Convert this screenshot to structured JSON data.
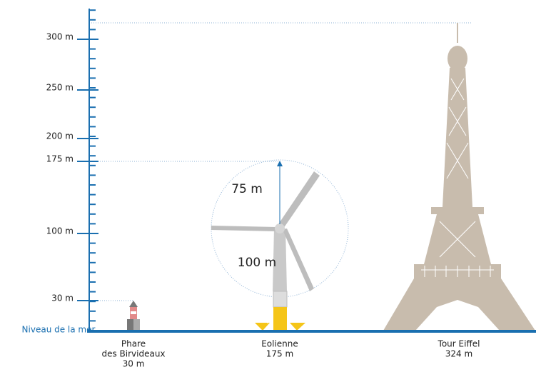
{
  "axis": {
    "ticks": [
      "300 m",
      "250 m",
      "200 m",
      "175 m",
      "100 m",
      "30 m"
    ],
    "sea_level": "Niveau de la mer"
  },
  "objects": [
    {
      "name_lines": [
        "Phare",
        "des Birvideaux"
      ],
      "height": "30 m"
    },
    {
      "name_lines": [
        "Eolienne"
      ],
      "height": "175 m"
    },
    {
      "name_lines": [
        "Tour Eiffel"
      ],
      "height": "324 m"
    }
  ],
  "annotations": {
    "blade": "75 m",
    "hub": "100 m"
  }
}
